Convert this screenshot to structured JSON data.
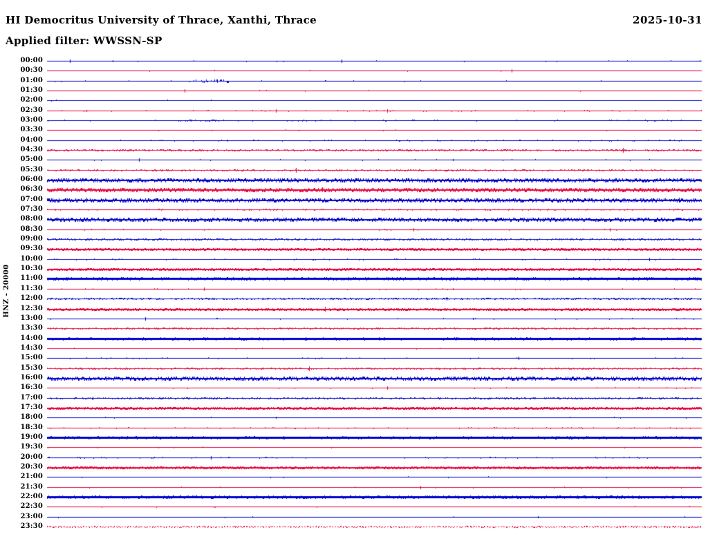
{
  "header": {
    "station_line": "HI Democritus University of Thrace, Xanthi, Thrace",
    "date": "2025-10-31",
    "filter_line": "Applied filter: WWSSN-SP"
  },
  "y_axis": {
    "channel_scale_label": "HNZ - 20000"
  },
  "colors": {
    "trace_blue": "#0000cd",
    "trace_red": "#e8003c",
    "text": "#000000",
    "background": "#ffffff"
  },
  "chart_data": {
    "type": "line",
    "subtype": "helicorder-day-plot",
    "title": "HI Democritus University of Thrace, Xanthi, Thrace",
    "date": "2025-10-31",
    "filter": "WWSSN-SP",
    "channel": "HNZ - 20000",
    "row_interval_minutes": 30,
    "row_color_cycle": [
      "blue",
      "red"
    ],
    "rows": [
      {
        "time": "00:00",
        "color": "blue",
        "thickness": 1,
        "density": 0.015,
        "amplitude": 1,
        "spikes": [
          [
            0.035,
            2
          ],
          [
            0.1,
            1
          ],
          [
            0.45,
            2
          ]
        ]
      },
      {
        "time": "00:30",
        "color": "red",
        "thickness": 1,
        "density": 0.008,
        "amplitude": 1,
        "spikes": [
          [
            0.71,
            2
          ]
        ]
      },
      {
        "time": "01:00",
        "color": "blue",
        "thickness": 1,
        "density": 0.012,
        "amplitude": 1,
        "bursts": [
          [
            0.22,
            0.28,
            0.3,
            2
          ]
        ],
        "spikes": [
          [
            0.26,
            2
          ]
        ]
      },
      {
        "time": "01:30",
        "color": "red",
        "thickness": 1,
        "density": 0.008,
        "amplitude": 1,
        "spikes": [
          [
            0.21,
            2
          ]
        ]
      },
      {
        "time": "02:00",
        "color": "blue",
        "thickness": 1,
        "density": 0.006,
        "amplitude": 1
      },
      {
        "time": "02:30",
        "color": "red",
        "thickness": 1,
        "density": 0.05,
        "amplitude": 1,
        "spikes": [
          [
            0.06,
            1
          ],
          [
            0.35,
            2
          ],
          [
            0.52,
            2
          ]
        ]
      },
      {
        "time": "03:00",
        "color": "blue",
        "thickness": 1,
        "density": 0.05,
        "amplitude": 1,
        "bursts": [
          [
            0.2,
            0.27,
            0.2,
            1
          ]
        ]
      },
      {
        "time": "03:30",
        "color": "red",
        "thickness": 1,
        "density": 0.012,
        "amplitude": 1
      },
      {
        "time": "04:00",
        "color": "blue",
        "thickness": 1,
        "density": 0.05,
        "amplitude": 1
      },
      {
        "time": "04:30",
        "color": "red",
        "thickness": 1,
        "density": 0.45,
        "amplitude": 1,
        "spikes": [
          [
            0.88,
            3
          ]
        ]
      },
      {
        "time": "05:00",
        "color": "blue",
        "thickness": 1,
        "density": 0.01,
        "amplitude": 1,
        "spikes": [
          [
            0.14,
            2
          ],
          [
            0.62,
            1
          ]
        ]
      },
      {
        "time": "05:30",
        "color": "red",
        "thickness": 1,
        "density": 0.3,
        "amplitude": 1,
        "spikes": [
          [
            0.38,
            3
          ]
        ]
      },
      {
        "time": "06:00",
        "color": "blue",
        "thickness": 2,
        "density": 0.75,
        "amplitude": 2
      },
      {
        "time": "06:30",
        "color": "red",
        "thickness": 2,
        "density": 0.75,
        "amplitude": 2,
        "spikes": [
          [
            0.42,
            3
          ]
        ]
      },
      {
        "time": "07:00",
        "color": "blue",
        "thickness": 2,
        "density": 0.75,
        "amplitude": 2,
        "spikes": [
          [
            0.06,
            3
          ],
          [
            0.6,
            2
          ],
          [
            0.965,
            3
          ]
        ]
      },
      {
        "time": "07:30",
        "color": "red",
        "thickness": 1,
        "density": 0.12,
        "amplitude": 1
      },
      {
        "time": "08:00",
        "color": "blue",
        "thickness": 2,
        "density": 0.7,
        "amplitude": 2
      },
      {
        "time": "08:30",
        "color": "red",
        "thickness": 1,
        "density": 0.02,
        "amplitude": 1,
        "spikes": [
          [
            0.56,
            2
          ],
          [
            0.86,
            2
          ]
        ]
      },
      {
        "time": "09:00",
        "color": "blue",
        "thickness": 1,
        "density": 0.5,
        "amplitude": 1
      },
      {
        "time": "09:30",
        "color": "red",
        "thickness": 2,
        "density": 0.6,
        "amplitude": 1
      },
      {
        "time": "10:00",
        "color": "blue",
        "thickness": 1,
        "density": 0.06,
        "amplitude": 1,
        "spikes": [
          [
            0.92,
            2
          ]
        ]
      },
      {
        "time": "10:30",
        "color": "red",
        "thickness": 2,
        "density": 0.6,
        "amplitude": 1
      },
      {
        "time": "11:00",
        "color": "blue",
        "thickness": 3,
        "density": 0.2,
        "amplitude": 1
      },
      {
        "time": "11:30",
        "color": "red",
        "thickness": 1,
        "density": 0.015,
        "amplitude": 1,
        "spikes": [
          [
            0.24,
            2
          ],
          [
            0.62,
            1
          ]
        ]
      },
      {
        "time": "12:00",
        "color": "blue",
        "thickness": 1,
        "density": 0.4,
        "amplitude": 1,
        "spikes": [
          [
            0.61,
            2
          ]
        ]
      },
      {
        "time": "12:30",
        "color": "red",
        "thickness": 2,
        "density": 0.55,
        "amplitude": 1,
        "spikes": [
          [
            0.425,
            3
          ]
        ]
      },
      {
        "time": "13:00",
        "color": "blue",
        "thickness": 1,
        "density": 0.015,
        "amplitude": 1,
        "spikes": [
          [
            0.15,
            2
          ],
          [
            0.65,
            1
          ]
        ]
      },
      {
        "time": "13:30",
        "color": "red",
        "thickness": 1,
        "density": 0.4,
        "amplitude": 1
      },
      {
        "time": "14:00",
        "color": "blue",
        "thickness": 3,
        "density": 0.12,
        "amplitude": 1
      },
      {
        "time": "14:30",
        "color": "red",
        "thickness": 1,
        "density": 0.01,
        "amplitude": 1
      },
      {
        "time": "15:00",
        "color": "blue",
        "thickness": 1,
        "density": 0.035,
        "amplitude": 1,
        "spikes": [
          [
            0.72,
            2
          ]
        ]
      },
      {
        "time": "15:30",
        "color": "red",
        "thickness": 1,
        "density": 0.35,
        "amplitude": 1,
        "spikes": [
          [
            0.4,
            3
          ]
        ]
      },
      {
        "time": "16:00",
        "color": "blue",
        "thickness": 2,
        "density": 0.7,
        "amplitude": 2
      },
      {
        "time": "16:30",
        "color": "red",
        "thickness": 1,
        "density": 0.012,
        "amplitude": 1,
        "spikes": [
          [
            0.52,
            2
          ]
        ]
      },
      {
        "time": "17:00",
        "color": "blue",
        "thickness": 1,
        "density": 0.35,
        "amplitude": 1,
        "spikes": [
          [
            0.07,
            2
          ]
        ]
      },
      {
        "time": "17:30",
        "color": "red",
        "thickness": 2,
        "density": 0.65,
        "amplitude": 1
      },
      {
        "time": "18:00",
        "color": "blue",
        "thickness": 1,
        "density": 0.01,
        "amplitude": 1,
        "spikes": [
          [
            0.35,
            1
          ]
        ]
      },
      {
        "time": "18:30",
        "color": "red",
        "thickness": 1,
        "density": 0.06,
        "amplitude": 1
      },
      {
        "time": "19:00",
        "color": "blue",
        "thickness": 3,
        "density": 0.12,
        "amplitude": 1
      },
      {
        "time": "19:30",
        "color": "red",
        "thickness": 1,
        "density": 0.01,
        "amplitude": 1
      },
      {
        "time": "20:00",
        "color": "blue",
        "thickness": 1,
        "density": 0.05,
        "amplitude": 1,
        "spikes": [
          [
            0.25,
            2
          ]
        ]
      },
      {
        "time": "20:30",
        "color": "red",
        "thickness": 2,
        "density": 0.6,
        "amplitude": 1
      },
      {
        "time": "21:00",
        "color": "blue",
        "thickness": 1,
        "density": 0.008,
        "amplitude": 1
      },
      {
        "time": "21:30",
        "color": "red",
        "thickness": 1,
        "density": 0.008,
        "amplitude": 1,
        "spikes": [
          [
            0.57,
            2
          ]
        ]
      },
      {
        "time": "22:00",
        "color": "blue",
        "thickness": 3,
        "density": 0.25,
        "amplitude": 1
      },
      {
        "time": "22:30",
        "color": "red",
        "thickness": 1,
        "density": 0.008,
        "amplitude": 1
      },
      {
        "time": "23:00",
        "color": "blue",
        "thickness": 1,
        "density": 0.008,
        "amplitude": 1,
        "spikes": [
          [
            0.75,
            1
          ]
        ]
      },
      {
        "time": "23:30",
        "color": "red",
        "thickness": 1,
        "density": 0.3,
        "amplitude": 1,
        "dashed": true
      }
    ]
  }
}
